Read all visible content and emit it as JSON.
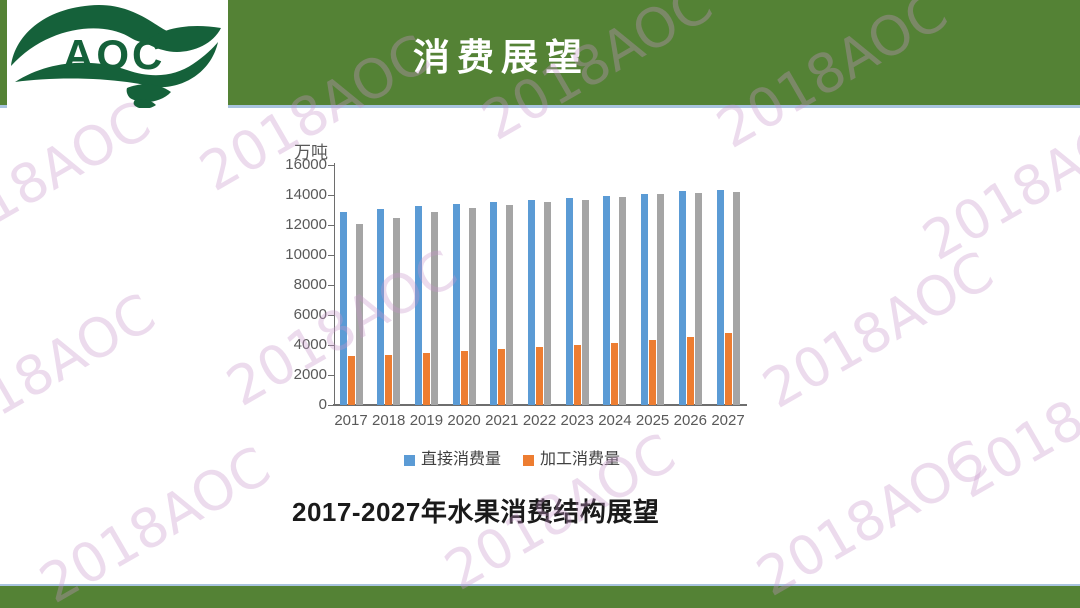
{
  "header": {
    "logo_text": "AOC",
    "title": "消费展望"
  },
  "watermark": {
    "text": "2018AOC"
  },
  "caption": "2017-2027年水果消费结构展望",
  "chart_data": {
    "type": "bar",
    "title": "2017-2027年水果消费结构展望",
    "xlabel": "",
    "ylabel": "万吨",
    "ylim": [
      0,
      16000
    ],
    "yticks": [
      0,
      2000,
      4000,
      6000,
      8000,
      10000,
      12000,
      14000,
      16000
    ],
    "grid": false,
    "legend_position": "bottom",
    "categories": [
      "2017",
      "2018",
      "2019",
      "2020",
      "2021",
      "2022",
      "2023",
      "2024",
      "2025",
      "2026",
      "2027"
    ],
    "series": [
      {
        "name": "直接消费量",
        "color": "#5B9BD5",
        "in_legend": true,
        "values": [
          12900,
          13050,
          13250,
          13400,
          13550,
          13700,
          13800,
          13950,
          14100,
          14250,
          14350
        ]
      },
      {
        "name": "加工消费量",
        "color": "#ED7D31",
        "in_legend": true,
        "values": [
          3250,
          3350,
          3500,
          3600,
          3750,
          3850,
          4000,
          4150,
          4350,
          4550,
          4800
        ]
      },
      {
        "name": "",
        "color": "#A5A5A5",
        "in_legend": false,
        "values": [
          12050,
          12450,
          12850,
          13150,
          13350,
          13550,
          13700,
          13900,
          14050,
          14150,
          14200
        ]
      }
    ]
  },
  "colors": {
    "band_green": "#548235",
    "logo_green": "#15613A",
    "accent_line_blue": "#A9C4DF",
    "axis_gray": "#595959",
    "legend_text": "#404040"
  }
}
